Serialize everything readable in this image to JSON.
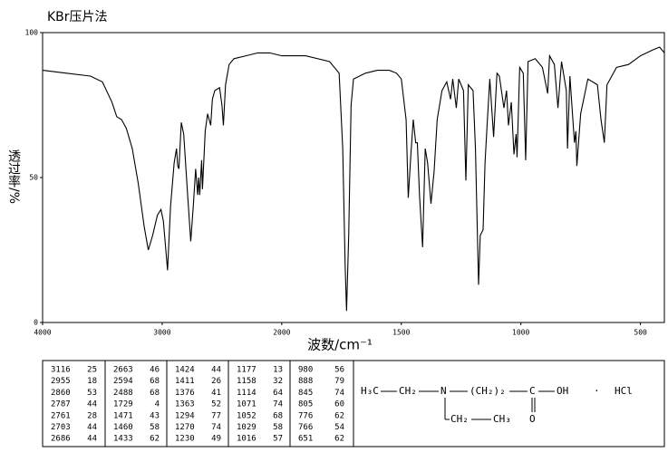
{
  "chart_data": {
    "type": "line",
    "title": "KBr压片法",
    "x_label": "波数/cm⁻¹",
    "y_label": "透过率/%",
    "xlim": [
      4000,
      400
    ],
    "x_break": 2000,
    "xticks": [
      4000,
      3000,
      2000,
      1500,
      1000,
      500
    ],
    "ylim": [
      0,
      100
    ],
    "yticks": [
      0,
      50,
      100
    ],
    "color": "#000000",
    "x": [
      4000,
      3800,
      3600,
      3500,
      3420,
      3380,
      3340,
      3300,
      3250,
      3200,
      3150,
      3116,
      3080,
      3040,
      3010,
      2990,
      2955,
      2930,
      2900,
      2880,
      2870,
      2860,
      2840,
      2820,
      2787,
      2761,
      2740,
      2720,
      2703,
      2695,
      2686,
      2670,
      2663,
      2640,
      2620,
      2594,
      2580,
      2560,
      2520,
      2500,
      2488,
      2470,
      2440,
      2400,
      2300,
      2200,
      2100,
      2000,
      1900,
      1800,
      1760,
      1745,
      1735,
      1729,
      1720,
      1710,
      1700,
      1650,
      1600,
      1550,
      1520,
      1500,
      1480,
      1471,
      1460,
      1450,
      1440,
      1433,
      1424,
      1411,
      1400,
      1390,
      1376,
      1363,
      1350,
      1330,
      1310,
      1294,
      1285,
      1270,
      1260,
      1240,
      1230,
      1220,
      1200,
      1190,
      1177,
      1170,
      1158,
      1150,
      1140,
      1130,
      1114,
      1100,
      1090,
      1071,
      1060,
      1052,
      1040,
      1029,
      1020,
      1016,
      1005,
      990,
      980,
      970,
      940,
      910,
      888,
      880,
      860,
      845,
      830,
      810,
      805,
      795,
      776,
      770,
      766,
      750,
      720,
      700,
      680,
      665,
      651,
      640,
      600,
      550,
      500,
      450,
      420,
      400
    ],
    "values": [
      87,
      86,
      85,
      83,
      76,
      71,
      70,
      67,
      60,
      48,
      33,
      25,
      30,
      37,
      39,
      35,
      18,
      40,
      55,
      60,
      54,
      53,
      69,
      65,
      44,
      28,
      40,
      53,
      44,
      50,
      44,
      56,
      46,
      66,
      72,
      68,
      77,
      80,
      81,
      75,
      68,
      82,
      89,
      91,
      92,
      93,
      93,
      92,
      92,
      90,
      86,
      60,
      20,
      4,
      30,
      75,
      84,
      86,
      87,
      87,
      86,
      84,
      70,
      43,
      58,
      70,
      62,
      62,
      44,
      26,
      60,
      55,
      41,
      52,
      70,
      80,
      83,
      77,
      84,
      74,
      84,
      80,
      49,
      82,
      80,
      60,
      13,
      30,
      32,
      55,
      70,
      84,
      64,
      86,
      85,
      74,
      80,
      68,
      76,
      58,
      65,
      57,
      88,
      86,
      56,
      90,
      91,
      88,
      79,
      92,
      89,
      74,
      90,
      80,
      60,
      85,
      62,
      66,
      54,
      72,
      84,
      83,
      82,
      70,
      62,
      82,
      88,
      89,
      92,
      94,
      95,
      93
    ]
  },
  "peak_table": {
    "peaks": [
      [
        3116,
        25
      ],
      [
        2955,
        18
      ],
      [
        2860,
        53
      ],
      [
        2787,
        44
      ],
      [
        2761,
        28
      ],
      [
        2703,
        44
      ],
      [
        2686,
        44
      ],
      [
        2663,
        46
      ],
      [
        2594,
        68
      ],
      [
        2488,
        68
      ],
      [
        1729,
        4
      ],
      [
        1471,
        43
      ],
      [
        1460,
        58
      ],
      [
        1433,
        62
      ],
      [
        1424,
        44
      ],
      [
        1411,
        26
      ],
      [
        1376,
        41
      ],
      [
        1363,
        52
      ],
      [
        1294,
        77
      ],
      [
        1270,
        74
      ],
      [
        1230,
        49
      ],
      [
        1177,
        13
      ],
      [
        1158,
        32
      ],
      [
        1114,
        64
      ],
      [
        1071,
        74
      ],
      [
        1052,
        68
      ],
      [
        1029,
        58
      ],
      [
        1016,
        57
      ],
      [
        980,
        56
      ],
      [
        888,
        79
      ],
      [
        845,
        74
      ],
      [
        805,
        60
      ],
      [
        776,
        62
      ],
      [
        766,
        54
      ],
      [
        651,
        62
      ]
    ]
  },
  "structure": {
    "methyl": "H₃C",
    "methylene": "CH₂",
    "nitrogen": "N",
    "chain": "(CH₂)₂",
    "carbon": "C",
    "hydroxyl": "OH",
    "dot": "·",
    "salt": "HCl",
    "oxygen": "O",
    "branch_methylene": "CH₂",
    "branch_methyl": "CH₃"
  }
}
